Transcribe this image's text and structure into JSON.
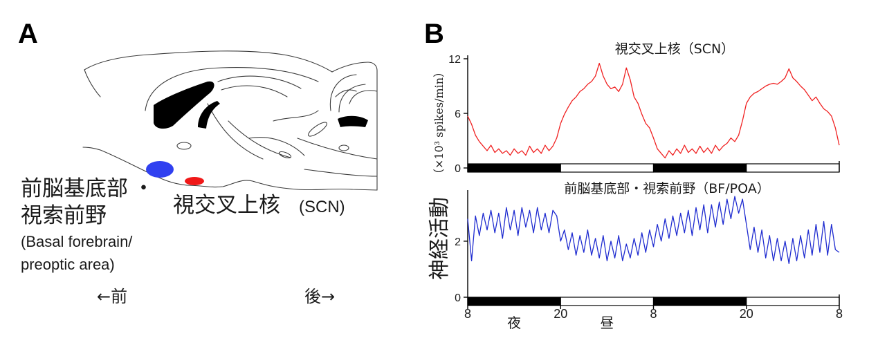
{
  "panel_a": {
    "label": "A",
    "bf_label_ja": "前脳基底部",
    "bf_bullet": "・",
    "bf_label_ja_2": "視索前野",
    "bf_label_en_1": "(Basal forebrain/",
    "bf_label_en_2": "preoptic area)",
    "scn_label_ja": "視交叉上核",
    "scn_label_en": "(SCN)",
    "anterior_label": "←前",
    "posterior_label": "後→",
    "bf_color": "#3040f0",
    "scn_color": "#f01818"
  },
  "panel_b": {
    "label": "B",
    "x_tick_labels": [
      "8",
      "20",
      "8",
      "20",
      "8"
    ],
    "night_label": "夜",
    "day_label": "昼",
    "light_schedule_colors": [
      "#000000",
      "#ffffff",
      "#000000",
      "#ffffff"
    ]
  },
  "chart_data": [
    {
      "type": "line",
      "title": "視交叉上核（SCN）",
      "xlabel": "",
      "ylabel": "（×10³ spikes/min）",
      "ylim": [
        0,
        12
      ],
      "yticks": [
        0,
        6,
        12
      ],
      "color": "#f02020",
      "x": [
        8,
        8.5,
        9,
        9.5,
        10,
        10.5,
        11,
        11.5,
        12,
        12.5,
        13,
        13.5,
        14,
        14.5,
        15,
        15.5,
        16,
        16.5,
        17,
        17.5,
        18,
        18.5,
        19,
        19.5,
        20,
        20.5,
        21,
        21.5,
        22,
        22.5,
        23,
        23.5,
        0,
        0.5,
        1,
        1.5,
        2,
        2.5,
        3,
        3.5,
        4,
        4.5,
        5,
        5.5,
        6,
        6.5,
        7,
        7.5,
        8,
        8.5,
        9,
        9.5,
        10,
        10.5,
        11,
        11.5,
        12,
        12.5,
        13,
        13.5,
        14,
        14.5,
        15,
        15.5,
        16,
        16.5,
        17,
        17.5,
        18,
        18.5,
        19,
        19.5,
        20,
        20.5,
        21,
        21.5,
        22,
        22.5,
        23,
        23.5,
        0,
        0.5,
        1,
        1.5,
        2,
        2.5,
        3,
        3.5,
        4,
        4.5,
        5,
        5.5,
        6,
        6.5,
        7,
        7.5,
        8
      ],
      "y": [
        5.7,
        4.8,
        3.6,
        2.9,
        2.4,
        1.9,
        2.5,
        1.7,
        2.1,
        1.6,
        1.9,
        1.4,
        2.1,
        1.6,
        1.9,
        1.4,
        2.4,
        1.7,
        2.1,
        1.6,
        2.5,
        1.9,
        2.4,
        3.3,
        4.9,
        5.9,
        6.7,
        7.4,
        7.8,
        8.4,
        8.7,
        9.2,
        9.5,
        10.1,
        11.5,
        10.1,
        9.2,
        8.7,
        8.9,
        8.4,
        9.2,
        11.0,
        9.7,
        7.8,
        7.1,
        5.9,
        4.9,
        4.4,
        3.3,
        2.1,
        1.6,
        1.1,
        1.9,
        1.4,
        2.1,
        1.6,
        2.5,
        1.7,
        2.1,
        1.6,
        2.4,
        1.7,
        2.2,
        1.6,
        2.5,
        1.9,
        2.4,
        2.7,
        3.3,
        2.9,
        3.6,
        5.2,
        7.1,
        7.8,
        8.2,
        8.4,
        8.7,
        9.0,
        9.2,
        9.3,
        9.2,
        9.5,
        9.9,
        10.9,
        9.9,
        9.5,
        9.0,
        8.6,
        8.0,
        7.4,
        7.8,
        7.1,
        6.5,
        6.2,
        5.7,
        4.4,
        2.5
      ]
    },
    {
      "type": "line",
      "title": "前脳基底部・視索前野（BF/POA）",
      "xlabel": "",
      "ylabel": "神経活動",
      "ylim": [
        0,
        3.7
      ],
      "yticks": [
        0,
        2
      ],
      "color": "#1e2bd0",
      "x": [
        8,
        8.5,
        9,
        9.5,
        10,
        10.5,
        11,
        11.5,
        12,
        12.5,
        13,
        13.5,
        14,
        14.5,
        15,
        15.5,
        16,
        16.5,
        17,
        17.5,
        18,
        18.5,
        19,
        19.5,
        20,
        20.5,
        21,
        21.5,
        22,
        22.5,
        23,
        23.5,
        0,
        0.5,
        1,
        1.5,
        2,
        2.5,
        3,
        3.5,
        4,
        4.5,
        5,
        5.5,
        6,
        6.5,
        7,
        7.5,
        8,
        8.5,
        9,
        9.5,
        10,
        10.5,
        11,
        11.5,
        12,
        12.5,
        13,
        13.5,
        14,
        14.5,
        15,
        15.5,
        16,
        16.5,
        17,
        17.5,
        18,
        18.5,
        19,
        19.5,
        20,
        20.5,
        21,
        21.5,
        22,
        22.5,
        23,
        23.5,
        0,
        0.5,
        1,
        1.5,
        2,
        2.5,
        3,
        3.5,
        4,
        4.5,
        5,
        5.5,
        6,
        6.5,
        7,
        7.5,
        8
      ],
      "y": [
        2.8,
        1.3,
        2.9,
        2.2,
        3.0,
        2.4,
        3.1,
        2.3,
        3.0,
        2.1,
        3.2,
        2.4,
        3.1,
        2.2,
        3.2,
        2.5,
        3.1,
        2.3,
        3.2,
        2.4,
        3.0,
        2.3,
        3.1,
        2.9,
        2.0,
        2.4,
        1.7,
        2.3,
        1.5,
        2.2,
        1.6,
        2.4,
        1.5,
        2.1,
        1.4,
        2.2,
        1.3,
        2.0,
        1.4,
        2.2,
        1.3,
        1.9,
        1.4,
        2.1,
        1.5,
        2.3,
        1.6,
        2.4,
        1.8,
        2.6,
        2.0,
        2.8,
        2.1,
        2.9,
        2.2,
        3.0,
        2.3,
        3.1,
        2.2,
        3.2,
        2.4,
        3.3,
        2.3,
        3.3,
        2.5,
        3.4,
        2.6,
        3.5,
        2.8,
        3.6,
        3.0,
        3.5,
        2.6,
        1.7,
        2.5,
        1.6,
        2.4,
        1.4,
        2.2,
        1.3,
        2.1,
        1.3,
        2.0,
        1.2,
        2.1,
        1.3,
        2.2,
        1.4,
        2.4,
        1.5,
        2.6,
        1.6,
        2.7,
        1.5,
        2.6,
        1.7,
        1.6
      ]
    }
  ]
}
